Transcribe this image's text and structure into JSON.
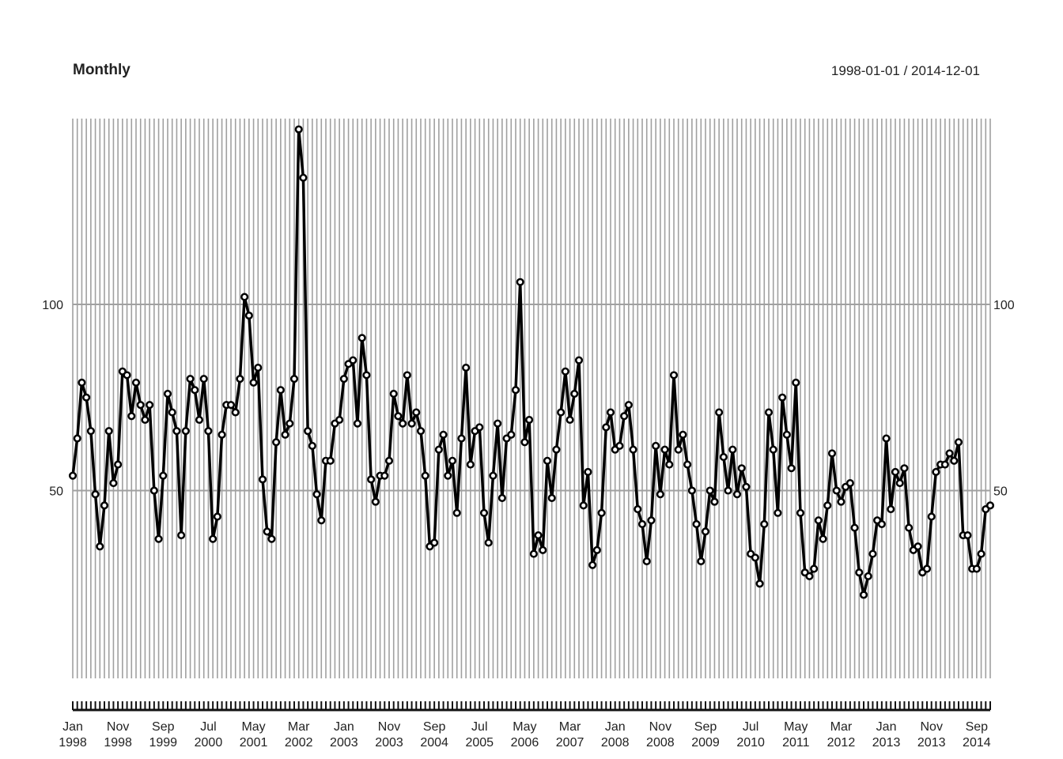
{
  "header": {
    "title": "Monthly",
    "date_range": "1998-01-01 / 2014-12-01"
  },
  "colors": {
    "line": "#000000",
    "grid": "#a0a0a0",
    "text": "#222222"
  },
  "chart_data": {
    "type": "line",
    "title": "Monthly",
    "subtitle": "1998-01-01 / 2014-12-01",
    "start": "1998-01",
    "frequency": "monthly",
    "ylim": [
      0,
      150
    ],
    "y_ticks": [
      50,
      100
    ],
    "grid": true,
    "markers": "open-circle",
    "x_tick_labels": [
      {
        "month": "Jan",
        "year": "1998",
        "date": "1998-01"
      },
      {
        "month": "Nov",
        "year": "1998",
        "date": "1998-11"
      },
      {
        "month": "Sep",
        "year": "1999",
        "date": "1999-09"
      },
      {
        "month": "Jul",
        "year": "2000",
        "date": "2000-07"
      },
      {
        "month": "May",
        "year": "2001",
        "date": "2001-05"
      },
      {
        "month": "Mar",
        "year": "2002",
        "date": "2002-03"
      },
      {
        "month": "Jan",
        "year": "2003",
        "date": "2003-01"
      },
      {
        "month": "Nov",
        "year": "2003",
        "date": "2003-11"
      },
      {
        "month": "Sep",
        "year": "2004",
        "date": "2004-09"
      },
      {
        "month": "Jul",
        "year": "2005",
        "date": "2005-07"
      },
      {
        "month": "May",
        "year": "2006",
        "date": "2006-05"
      },
      {
        "month": "Mar",
        "year": "2007",
        "date": "2007-03"
      },
      {
        "month": "Jan",
        "year": "2008",
        "date": "2008-01"
      },
      {
        "month": "Nov",
        "year": "2008",
        "date": "2008-11"
      },
      {
        "month": "Sep",
        "year": "2009",
        "date": "2009-09"
      },
      {
        "month": "Jul",
        "year": "2010",
        "date": "2010-07"
      },
      {
        "month": "May",
        "year": "2011",
        "date": "2011-05"
      },
      {
        "month": "Mar",
        "year": "2012",
        "date": "2012-03"
      },
      {
        "month": "Jan",
        "year": "2013",
        "date": "2013-01"
      },
      {
        "month": "Nov",
        "year": "2013",
        "date": "2013-11"
      },
      {
        "month": "Sep",
        "year": "2014",
        "date": "2014-09"
      }
    ],
    "values": [
      54,
      64,
      79,
      75,
      66,
      49,
      35,
      46,
      66,
      52,
      57,
      82,
      81,
      70,
      79,
      73,
      69,
      73,
      50,
      37,
      54,
      76,
      71,
      66,
      38,
      66,
      80,
      77,
      69,
      80,
      66,
      37,
      43,
      65,
      73,
      73,
      71,
      80,
      102,
      97,
      79,
      83,
      53,
      39,
      37,
      63,
      77,
      65,
      68,
      80,
      147,
      134,
      66,
      62,
      49,
      42,
      58,
      58,
      68,
      69,
      80,
      84,
      85,
      68,
      91,
      81,
      53,
      47,
      54,
      54,
      58,
      76,
      70,
      68,
      81,
      68,
      71,
      66,
      54,
      35,
      36,
      61,
      65,
      54,
      58,
      44,
      64,
      83,
      57,
      66,
      67,
      44,
      36,
      54,
      68,
      48,
      64,
      65,
      77,
      106,
      63,
      69,
      33,
      38,
      34,
      58,
      48,
      61,
      71,
      82,
      69,
      76,
      85,
      46,
      55,
      30,
      34,
      44,
      67,
      71,
      61,
      62,
      70,
      73,
      61,
      45,
      41,
      31,
      42,
      62,
      49,
      61,
      57,
      81,
      61,
      65,
      57,
      50,
      41,
      31,
      39,
      50,
      47,
      71,
      59,
      50,
      61,
      49,
      56,
      51,
      33,
      32,
      25,
      41,
      71,
      61,
      44,
      75,
      65,
      56,
      79,
      44,
      28,
      27,
      29,
      42,
      37,
      46,
      60,
      50,
      47,
      51,
      52,
      40,
      28,
      22,
      27,
      33,
      42,
      41,
      64,
      45,
      55,
      52,
      56,
      40,
      34,
      35,
      28,
      29,
      43,
      55,
      57,
      57,
      60,
      58,
      63,
      38,
      38,
      29,
      29,
      33,
      45,
      46
    ]
  }
}
